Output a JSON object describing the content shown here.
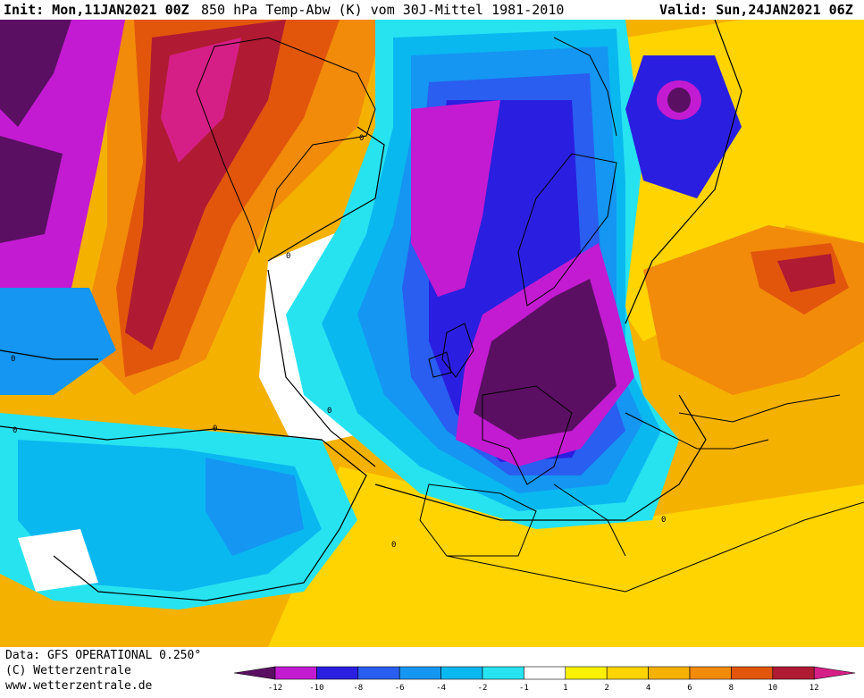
{
  "header": {
    "init": "Init: Mon,11JAN2021 00Z",
    "parameter": "850 hPa Temp-Abw (K) vom 30J-Mittel 1981-2010",
    "valid": "Valid: Sun,24JAN2021 06Z"
  },
  "footer": {
    "data_source": "Data: GFS OPERATIONAL 0.250°",
    "copyright": "(C) Wetterzentrale",
    "url": "www.wetterzentrale.de"
  },
  "legend": {
    "ticks": [
      "-12",
      "-10",
      "-8",
      "-6",
      "-4",
      "-2",
      "-1",
      "1",
      "2",
      "4",
      "6",
      "8",
      "10",
      "12"
    ],
    "colors": [
      "#5a0f63",
      "#c31bd1",
      "#2a1fe0",
      "#2a5ef0",
      "#1496f2",
      "#0ab8f0",
      "#27e3f0",
      "#ffffff",
      "#fff200",
      "#ffd400",
      "#f5b100",
      "#f28a0a",
      "#e2560c",
      "#b01a33",
      "#d61f86"
    ]
  },
  "contour_labels": [
    "0",
    "0",
    "0",
    "0",
    "0",
    "0",
    "0",
    "0"
  ]
}
